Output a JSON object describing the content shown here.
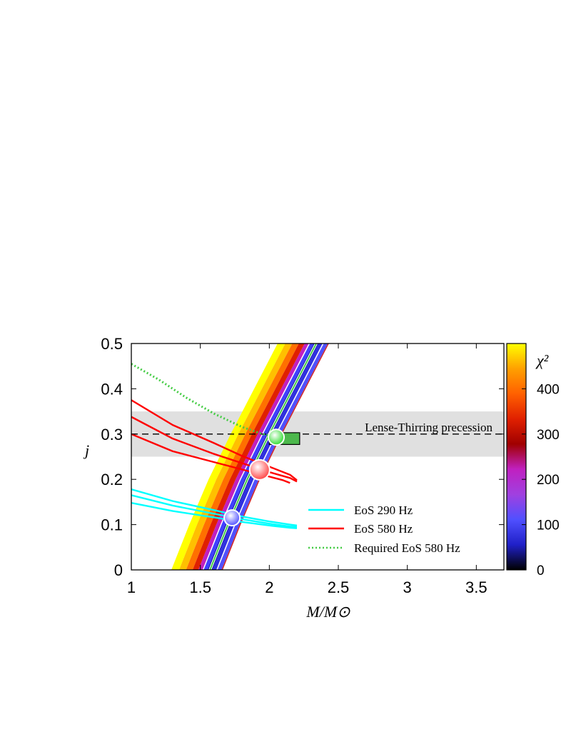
{
  "chart_data": {
    "type": "line",
    "xlabel": "M/M⊙",
    "ylabel": "j",
    "xlim": [
      1,
      3.7
    ],
    "ylim": [
      0,
      0.5
    ],
    "x_ticks": [
      "1",
      "1.5",
      "2",
      "2.5",
      "3",
      "3.5"
    ],
    "y_ticks": [
      "0",
      "0.1",
      "0.2",
      "0.3",
      "0.4",
      "0.5"
    ],
    "x_tick_values": [
      1,
      1.5,
      2,
      2.5,
      3,
      3.5
    ],
    "y_tick_values": [
      0,
      0.1,
      0.2,
      0.3,
      0.4,
      0.5
    ],
    "grid": false,
    "colorbar": {
      "label": "χ²",
      "range": [
        0,
        500
      ],
      "ticks": [
        "0",
        "100",
        "200",
        "300",
        "400"
      ],
      "tick_values": [
        0,
        100,
        200,
        300,
        400
      ],
      "colors": [
        "#000000",
        "#2020c8",
        "#5050ff",
        "#a040e0",
        "#c020c0",
        "#a00000",
        "#e02000",
        "#ff6000",
        "#ffa000",
        "#ffff00"
      ]
    },
    "shaded_band": {
      "y_range": [
        0.25,
        0.35
      ],
      "label": "Lense-Thirring precession",
      "line_y": 0.3
    },
    "chi2_band": {
      "center": [
        [
          1.57,
          0
        ],
        [
          1.7,
          0.1
        ],
        [
          1.84,
          0.2
        ],
        [
          2.0,
          0.3
        ],
        [
          2.17,
          0.4
        ],
        [
          2.34,
          0.5
        ]
      ],
      "half_width": 0.28
    },
    "green_rect": {
      "x_range": [
        2.0,
        2.22
      ],
      "y_range": [
        0.277,
        0.303
      ],
      "color": "#4cb84c"
    },
    "markers": [
      {
        "name": "green",
        "x": 2.05,
        "y": 0.293,
        "color": "#40e040"
      },
      {
        "name": "red",
        "x": 1.93,
        "y": 0.221,
        "color": "#ff5050"
      },
      {
        "name": "blue",
        "x": 1.73,
        "y": 0.115,
        "color": "#6060ff"
      }
    ],
    "series": [
      {
        "name": "EoS 290 Hz",
        "color": "#00ffff",
        "style": "solid",
        "curves": [
          [
            [
              1,
              0.178
            ],
            [
              1.3,
              0.152
            ],
            [
              1.6,
              0.132
            ],
            [
              1.8,
              0.118
            ],
            [
              2.0,
              0.107
            ],
            [
              2.15,
              0.1
            ],
            [
              2.2,
              0.098
            ]
          ],
          [
            [
              1,
              0.165
            ],
            [
              1.3,
              0.142
            ],
            [
              1.6,
              0.124
            ],
            [
              1.8,
              0.112
            ],
            [
              2.0,
              0.102
            ],
            [
              2.15,
              0.096
            ],
            [
              2.2,
              0.095
            ]
          ],
          [
            [
              1,
              0.148
            ],
            [
              1.3,
              0.13
            ],
            [
              1.6,
              0.116
            ],
            [
              1.8,
              0.106
            ],
            [
              2.0,
              0.098
            ],
            [
              2.15,
              0.093
            ],
            [
              2.2,
              0.092
            ]
          ]
        ]
      },
      {
        "name": "EoS 580 Hz",
        "color": "#ff0000",
        "style": "solid",
        "curves": [
          [
            [
              1,
              0.375
            ],
            [
              1.3,
              0.32
            ],
            [
              1.6,
              0.28
            ],
            [
              1.8,
              0.252
            ],
            [
              2.0,
              0.228
            ],
            [
              2.15,
              0.21
            ],
            [
              2.2,
              0.198
            ]
          ],
          [
            [
              1,
              0.338
            ],
            [
              1.3,
              0.29
            ],
            [
              1.6,
              0.256
            ],
            [
              1.8,
              0.236
            ],
            [
              2.0,
              0.216
            ],
            [
              2.15,
              0.203
            ],
            [
              2.2,
              0.195
            ]
          ],
          [
            [
              1,
              0.3
            ],
            [
              1.3,
              0.262
            ],
            [
              1.6,
              0.238
            ],
            [
              1.8,
              0.222
            ],
            [
              2.0,
              0.206
            ],
            [
              2.1,
              0.198
            ],
            [
              2.15,
              0.192
            ]
          ]
        ]
      },
      {
        "name": "Required EoS 580 Hz",
        "color": "#44cc44",
        "style": "dotted",
        "curves": [
          [
            [
              1,
              0.455
            ],
            [
              1.2,
              0.42
            ],
            [
              1.4,
              0.38
            ],
            [
              1.6,
              0.345
            ],
            [
              1.8,
              0.316
            ],
            [
              1.95,
              0.3
            ],
            [
              2.05,
              0.293
            ]
          ]
        ]
      }
    ],
    "legend": {
      "placement": "lower-right",
      "entries": [
        "EoS 290 Hz",
        "EoS 580 Hz",
        "Required EoS 580 Hz"
      ]
    }
  }
}
